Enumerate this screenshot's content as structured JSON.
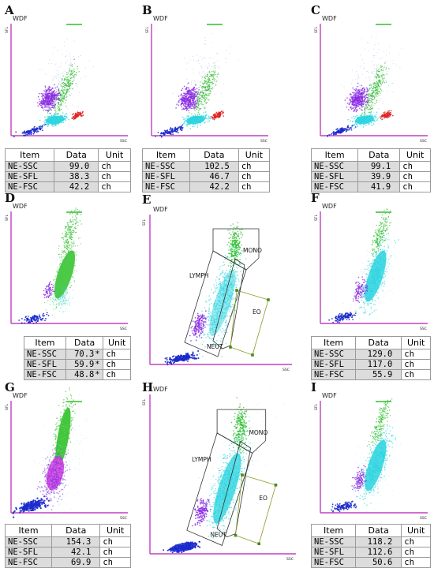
{
  "table_header": {
    "item": "Item",
    "data": "Data",
    "unit": "Unit"
  },
  "axis": {
    "y": "SFL",
    "x": "SSC",
    "title": "WDF"
  },
  "gate_labels": {
    "mono": "MONO",
    "lymph": "LYMPH",
    "neut": "NEUT",
    "eo": "EO"
  },
  "colors": {
    "axis": "#c040c0",
    "lymph": "#8a2be2",
    "mono": "#2fbf2f",
    "neut": "#2ad4e0",
    "eo": "#e02020",
    "debris": "#1a2acc",
    "gate": "#333333",
    "eo_gate": "#8a9a20"
  },
  "panels": [
    {
      "label": "A",
      "rows": [
        {
          "item": "NE-SSC",
          "value": "99.0",
          "flag": "",
          "unit": "ch"
        },
        {
          "item": "NE-SFL",
          "value": "38.3",
          "flag": "",
          "unit": "ch"
        },
        {
          "item": "NE-FSC",
          "value": "42.2",
          "flag": "",
          "unit": "ch"
        }
      ]
    },
    {
      "label": "B",
      "rows": [
        {
          "item": "NE-SSC",
          "value": "102.5",
          "flag": "",
          "unit": "ch"
        },
        {
          "item": "NE-SFL",
          "value": "46.7",
          "flag": "",
          "unit": "ch"
        },
        {
          "item": "NE-FSC",
          "value": "42.2",
          "flag": "",
          "unit": "ch"
        }
      ]
    },
    {
      "label": "C",
      "rows": [
        {
          "item": "NE-SSC",
          "value": "99.1",
          "flag": "",
          "unit": "ch"
        },
        {
          "item": "NE-SFL",
          "value": "39.9",
          "flag": "",
          "unit": "ch"
        },
        {
          "item": "NE-FSC",
          "value": "41.9",
          "flag": "",
          "unit": "ch"
        }
      ]
    },
    {
      "label": "D",
      "rows": [
        {
          "item": "NE-SSC",
          "value": "70.3",
          "flag": "*",
          "unit": "ch"
        },
        {
          "item": "NE-SFL",
          "value": "59.9",
          "flag": "*",
          "unit": "ch"
        },
        {
          "item": "NE-FSC",
          "value": "48.8",
          "flag": "*",
          "unit": "ch"
        }
      ]
    },
    {
      "label": "E",
      "rows": []
    },
    {
      "label": "F",
      "rows": [
        {
          "item": "NE-SSC",
          "value": "129.0",
          "flag": "",
          "unit": "ch"
        },
        {
          "item": "NE-SFL",
          "value": "117.0",
          "flag": "",
          "unit": "ch"
        },
        {
          "item": "NE-FSC",
          "value": "55.9",
          "flag": "",
          "unit": "ch"
        }
      ]
    },
    {
      "label": "G",
      "rows": [
        {
          "item": "NE-SSC",
          "value": "154.3",
          "flag": "",
          "unit": "ch"
        },
        {
          "item": "NE-SFL",
          "value": "42.1",
          "flag": "",
          "unit": "ch"
        },
        {
          "item": "NE-FSC",
          "value": "69.9",
          "flag": "",
          "unit": "ch"
        }
      ]
    },
    {
      "label": "H",
      "rows": []
    },
    {
      "label": "I",
      "rows": [
        {
          "item": "NE-SSC",
          "value": "118.2",
          "flag": "",
          "unit": "ch"
        },
        {
          "item": "NE-SFL",
          "value": "112.6",
          "flag": "",
          "unit": "ch"
        },
        {
          "item": "NE-FSC",
          "value": "50.6",
          "flag": "",
          "unit": "ch"
        }
      ]
    }
  ],
  "chart_data": {
    "type": "scatter",
    "description_free": true,
    "x_axis": "SSC",
    "y_axis": "SFL",
    "grid": false
  }
}
